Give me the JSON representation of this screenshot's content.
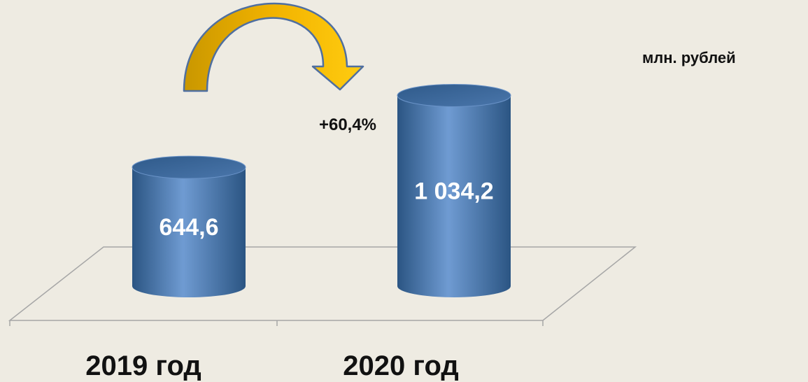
{
  "unit_label": "млн. рублей",
  "chart_data": {
    "type": "bar",
    "style": "3d-cylinder",
    "categories": [
      "2019 год",
      "2020 год"
    ],
    "values": [
      644.6,
      1034.2
    ],
    "value_labels": [
      "644,6",
      "1 034,2"
    ],
    "annotation": "+60,4%",
    "ylim": [
      0,
      1100
    ],
    "grid": false,
    "legend": "none",
    "colors": {
      "bar": "#4f81bd",
      "bar_dark": "#2b5583",
      "bar_light": "#6f9bd2",
      "arrow": "#f0b400",
      "arrow_stroke": "#4f6fa0",
      "axis": "#a6a6a6",
      "label": "#ffffff",
      "text": "#111111"
    }
  }
}
